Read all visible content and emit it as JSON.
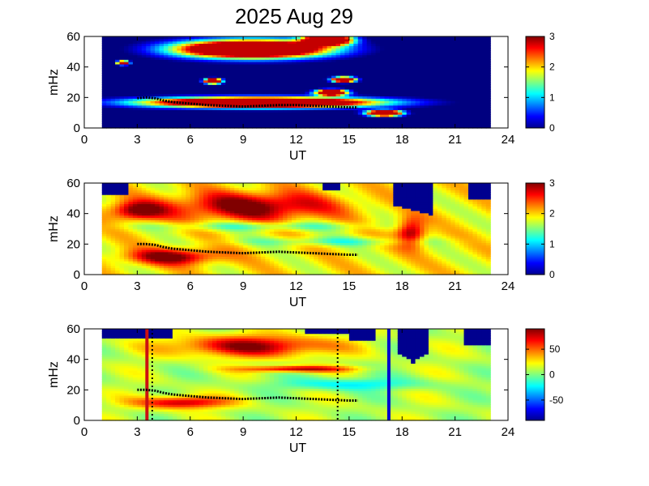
{
  "title": "2025 Aug 29",
  "colors": {
    "background": "#ffffff",
    "missing": "#00008f",
    "frame": "#000000",
    "ridge": "#000000",
    "marker_red": "#cc1111",
    "marker_blue": "#0000cc"
  },
  "chart_data": [
    {
      "type": "heatmap",
      "title": "",
      "xlabel": "UT",
      "ylabel": "mHz",
      "xlim": [
        0,
        24
      ],
      "ylim": [
        0,
        60
      ],
      "xticks": [
        "0",
        "3",
        "6",
        "9",
        "12",
        "15",
        "18",
        "21",
        "24"
      ],
      "yticks": [
        "0",
        "20",
        "40",
        "60"
      ],
      "data_span_ut": [
        1,
        23
      ],
      "colorbar": {
        "range": [
          0,
          3
        ],
        "ticks": [
          "0",
          "1",
          "2",
          "3"
        ],
        "colormap": "jet"
      },
      "ridge_line": {
        "x": [
          3.0,
          3.5,
          4.0,
          4.5,
          5.0,
          6.0,
          7.0,
          8.0,
          9.0,
          10.0,
          11.0,
          12.0,
          13.0,
          14.0,
          15.0,
          15.5
        ],
        "y": [
          19.5,
          20.0,
          19.5,
          18.0,
          17.0,
          16.0,
          15.0,
          14.5,
          14.0,
          14.5,
          15.0,
          15.0,
          14.5,
          14.0,
          13.5,
          13.5
        ]
      },
      "markers": []
    },
    {
      "type": "heatmap",
      "title": "",
      "xlabel": "UT",
      "ylabel": "mHz",
      "xlim": [
        0,
        24
      ],
      "ylim": [
        0,
        60
      ],
      "xticks": [
        "0",
        "3",
        "6",
        "9",
        "12",
        "15",
        "18",
        "21",
        "24"
      ],
      "yticks": [
        "0",
        "20",
        "40",
        "60"
      ],
      "data_span_ut": [
        1,
        23
      ],
      "colorbar": {
        "range": [
          0,
          3
        ],
        "ticks": [
          "0",
          "1",
          "2",
          "3"
        ],
        "colormap": "jet"
      },
      "ridge_line": {
        "x": [
          3.0,
          3.5,
          4.0,
          4.5,
          5.0,
          6.0,
          7.0,
          8.0,
          9.0,
          10.0,
          11.0,
          12.0,
          13.0,
          14.0,
          15.0,
          15.5
        ],
        "y": [
          20.0,
          20.0,
          19.5,
          18.0,
          17.0,
          16.0,
          15.0,
          14.5,
          14.0,
          14.5,
          15.0,
          14.5,
          14.0,
          13.5,
          13.0,
          13.0
        ]
      },
      "markers": []
    },
    {
      "type": "heatmap",
      "title": "",
      "xlabel": "UT",
      "ylabel": "mHz",
      "xlim": [
        0,
        24
      ],
      "ylim": [
        0,
        60
      ],
      "xticks": [
        "0",
        "3",
        "6",
        "9",
        "12",
        "15",
        "18",
        "21",
        "24"
      ],
      "yticks": [
        "0",
        "20",
        "40",
        "60"
      ],
      "data_span_ut": [
        1,
        23
      ],
      "colorbar": {
        "range": [
          -90,
          90
        ],
        "ticks": [
          "50",
          "0",
          "-50"
        ],
        "tick_values": [
          50,
          0,
          -50
        ],
        "colormap": "jet"
      },
      "ridge_line": {
        "x": [
          3.0,
          3.5,
          4.0,
          4.5,
          5.0,
          6.0,
          7.0,
          8.0,
          9.0,
          10.0,
          11.0,
          12.0,
          13.0,
          14.0,
          15.0,
          15.5
        ],
        "y": [
          20.0,
          20.0,
          19.5,
          18.0,
          17.0,
          16.0,
          15.0,
          14.5,
          14.0,
          14.5,
          15.0,
          14.5,
          14.0,
          13.5,
          13.0,
          13.0
        ]
      },
      "markers": [
        {
          "ut": 3.55,
          "style": "solid",
          "color": "#cc1111"
        },
        {
          "ut": 3.85,
          "style": "dotted",
          "color": "#000000"
        },
        {
          "ut": 14.35,
          "style": "dotted",
          "color": "#000000"
        },
        {
          "ut": 17.25,
          "style": "solid",
          "color": "#0000cc"
        }
      ]
    }
  ]
}
